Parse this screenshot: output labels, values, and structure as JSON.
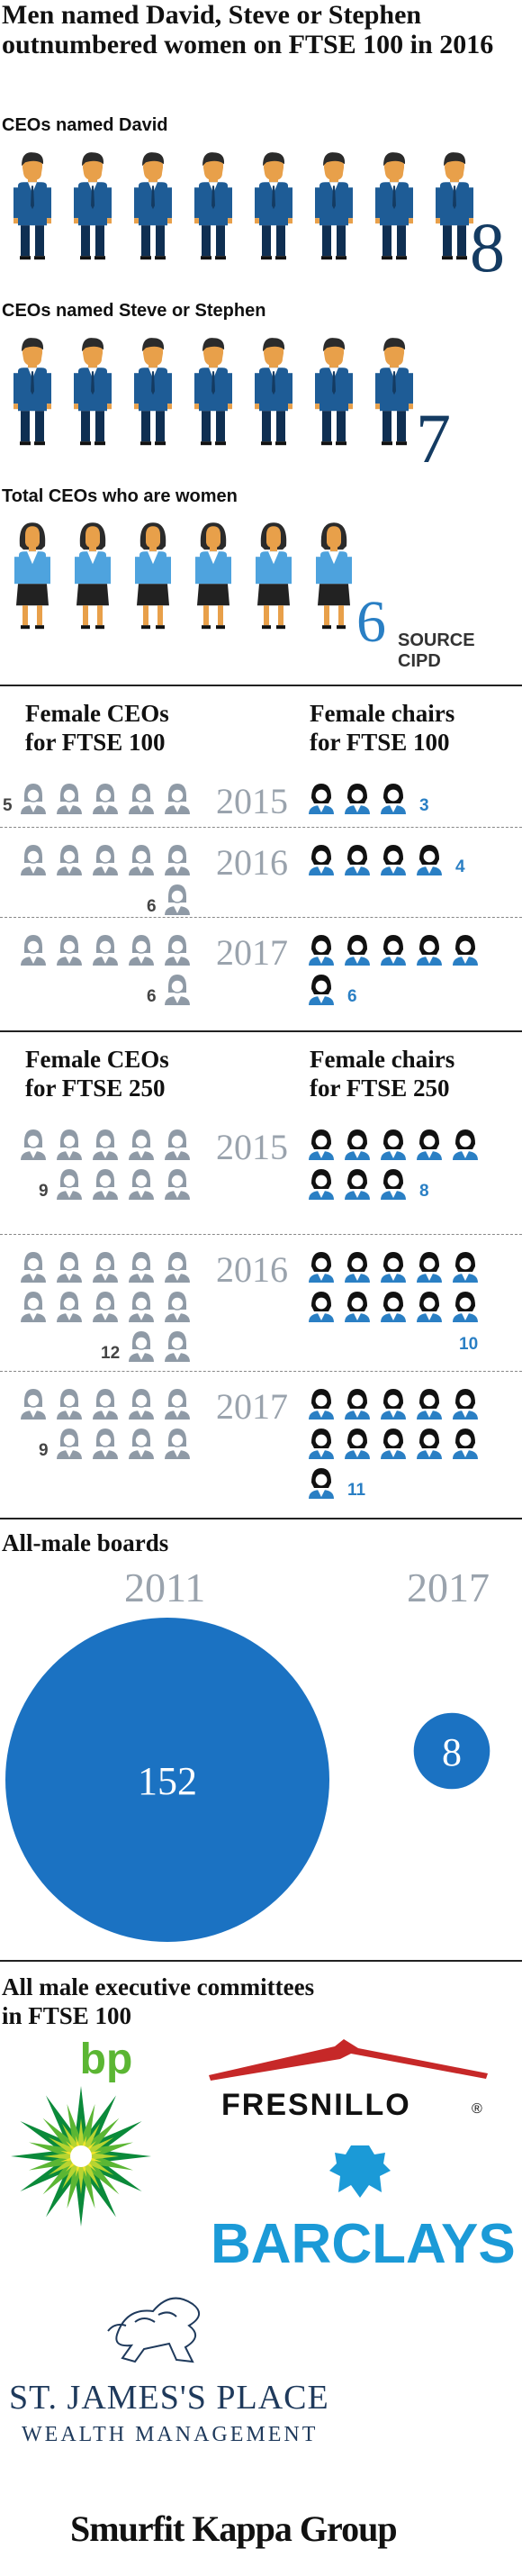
{
  "title": "Men named David, Steve or Stephen outnumbered women on FTSE 100 in 2016",
  "names_section": {
    "rows": [
      {
        "label": "CEOs named David",
        "value": "8",
        "count": 8
      },
      {
        "label": "CEOs named Steve or Stephen",
        "value": "7",
        "count": 7
      },
      {
        "label": "Total CEOs who are women",
        "value": "6",
        "count": 6
      }
    ],
    "source": "SOURCE CIPD"
  },
  "ftse100": {
    "ceo_heading": [
      "Female CEOs",
      "for FTSE 100"
    ],
    "chair_heading": [
      "Female chairs",
      "for FTSE 100"
    ],
    "years": [
      {
        "year": "2015",
        "ceos": "5",
        "chairs": "3"
      },
      {
        "year": "2016",
        "ceos": "6",
        "chairs": "4"
      },
      {
        "year": "2017",
        "ceos": "6",
        "chairs": "6"
      }
    ]
  },
  "ftse250": {
    "ceo_heading": [
      "Female CEOs",
      "for FTSE 250"
    ],
    "chair_heading": [
      "Female chairs",
      "for FTSE 250"
    ],
    "years": [
      {
        "year": "2015",
        "ceos": "9",
        "chairs": "8"
      },
      {
        "year": "2016",
        "ceos": "12",
        "chairs": "10"
      },
      {
        "year": "2017",
        "ceos": "9",
        "chairs": "11"
      }
    ]
  },
  "boards": {
    "heading": "All-male boards",
    "year_a": "2011",
    "value_a": "152",
    "year_b": "2017",
    "value_b": "8"
  },
  "committees": {
    "heading": [
      "All male executive committees",
      "in FTSE 100"
    ],
    "logos": {
      "bp": "bp",
      "fresnillo": "FRESNILLO",
      "fresnillo_mark": "®",
      "barclays": "BARCLAYS",
      "sjp_line1": "ST. JAMES'S PLACE",
      "sjp_line2": "WEALTH MANAGEMENT",
      "smurfit": "Smurfit Kappa Group"
    }
  },
  "colors": {
    "navy": "#143b62",
    "blue": "#2a7fc4",
    "grey": "#9aa3ad",
    "orange": "#f2a21c",
    "suit": "#1e5c96"
  },
  "chart_data": [
    {
      "type": "bar",
      "categories": [
        "CEOs named David",
        "CEOs named Steve or Stephen",
        "Total CEOs who are women"
      ],
      "values": [
        8,
        7,
        6
      ]
    },
    {
      "type": "bar",
      "categories": [
        "2015",
        "2016",
        "2017"
      ],
      "series": [
        {
          "name": "Female CEOs for FTSE 100",
          "values": [
            5,
            6,
            6
          ]
        },
        {
          "name": "Female chairs for FTSE 100",
          "values": [
            3,
            4,
            6
          ]
        }
      ]
    },
    {
      "type": "bar",
      "categories": [
        "2015",
        "2016",
        "2017"
      ],
      "series": [
        {
          "name": "Female CEOs for FTSE 250",
          "values": [
            9,
            12,
            9
          ]
        },
        {
          "name": "Female chairs for FTSE 250",
          "values": [
            8,
            10,
            11
          ]
        }
      ]
    },
    {
      "type": "bubble",
      "title": "All-male boards",
      "categories": [
        "2011",
        "2017"
      ],
      "values": [
        152,
        8
      ]
    }
  ]
}
